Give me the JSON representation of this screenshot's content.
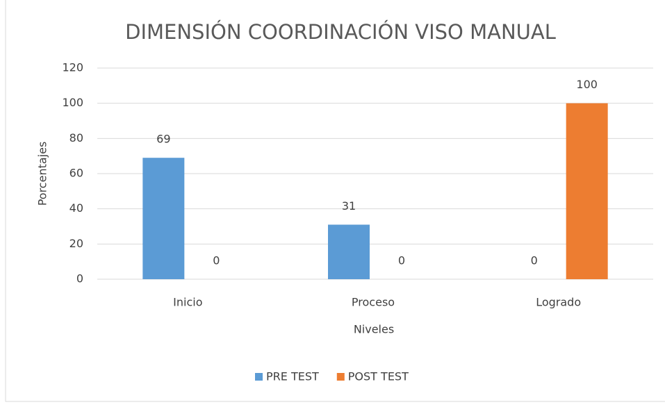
{
  "chart_data": {
    "type": "bar",
    "title": "DIMENSIÓN COORDINACIÓN VISO MANUAL",
    "x_label": "Niveles",
    "y_label": "Porcentajes",
    "categories": [
      "Inicio",
      "Proceso",
      "Logrado"
    ],
    "series": [
      {
        "name": "PRE TEST",
        "color": "#5b9bd5",
        "values": [
          69,
          31,
          0
        ]
      },
      {
        "name": "POST TEST",
        "color": "#ed7d31",
        "values": [
          0,
          0,
          100
        ]
      }
    ],
    "ylim": [
      0,
      120
    ],
    "yticks": [
      0,
      20,
      40,
      60,
      80,
      100,
      120
    ],
    "grid": true,
    "legend": "bottom"
  }
}
